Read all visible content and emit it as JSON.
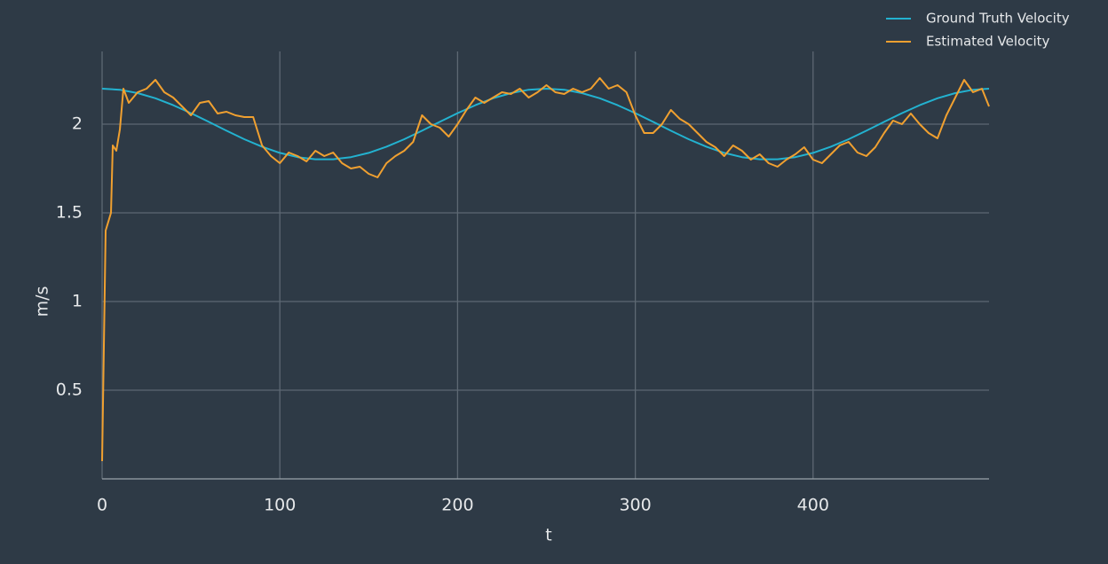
{
  "chart_data": {
    "type": "line",
    "xlabel": "t",
    "ylabel": "m/s",
    "xlim": [
      0,
      499
    ],
    "ylim": [
      0,
      2.41
    ],
    "xticks": [
      0,
      100,
      200,
      300,
      400
    ],
    "yticks": [
      0.5,
      1,
      1.5,
      2
    ],
    "grid": true,
    "legend": "top-right",
    "series": [
      {
        "name": "Ground Truth Velocity",
        "color": "#23b2d0",
        "x": [
          0,
          10,
          20,
          30,
          40,
          50,
          60,
          70,
          80,
          90,
          100,
          110,
          120,
          130,
          140,
          150,
          160,
          170,
          180,
          190,
          200,
          210,
          220,
          230,
          240,
          250,
          260,
          270,
          280,
          290,
          300,
          310,
          320,
          330,
          340,
          350,
          360,
          370,
          380,
          390,
          400,
          410,
          420,
          430,
          440,
          450,
          460,
          470,
          480,
          490,
          499
        ],
        "values": [
          2.2,
          2.194,
          2.175,
          2.146,
          2.107,
          2.062,
          2.013,
          1.963,
          1.915,
          1.873,
          1.838,
          1.814,
          1.802,
          1.802,
          1.814,
          1.838,
          1.873,
          1.915,
          1.963,
          2.013,
          2.062,
          2.107,
          2.146,
          2.175,
          2.194,
          2.2,
          2.194,
          2.175,
          2.146,
          2.107,
          2.062,
          2.013,
          1.963,
          1.915,
          1.873,
          1.838,
          1.814,
          1.802,
          1.802,
          1.814,
          1.838,
          1.873,
          1.915,
          1.963,
          2.013,
          2.062,
          2.107,
          2.146,
          2.175,
          2.194,
          2.2
        ]
      },
      {
        "name": "Estimated Velocity",
        "color": "#f0a030",
        "x": [
          0,
          2,
          5,
          6,
          8,
          10,
          12,
          15,
          20,
          25,
          30,
          35,
          40,
          45,
          50,
          55,
          60,
          65,
          70,
          75,
          80,
          85,
          90,
          95,
          100,
          105,
          110,
          115,
          120,
          125,
          130,
          135,
          140,
          145,
          150,
          155,
          160,
          165,
          170,
          175,
          180,
          185,
          190,
          195,
          200,
          205,
          210,
          215,
          220,
          225,
          230,
          235,
          240,
          245,
          250,
          255,
          260,
          265,
          270,
          275,
          280,
          285,
          290,
          295,
          300,
          305,
          310,
          315,
          320,
          325,
          330,
          335,
          340,
          345,
          350,
          355,
          360,
          365,
          370,
          375,
          380,
          385,
          390,
          395,
          400,
          405,
          410,
          415,
          420,
          425,
          430,
          435,
          440,
          445,
          450,
          455,
          460,
          465,
          470,
          475,
          480,
          485,
          490,
          495,
          499
        ],
        "values": [
          0.1,
          1.4,
          1.5,
          1.88,
          1.85,
          1.97,
          2.2,
          2.12,
          2.18,
          2.2,
          2.25,
          2.18,
          2.15,
          2.1,
          2.05,
          2.12,
          2.13,
          2.06,
          2.07,
          2.05,
          2.04,
          2.04,
          1.88,
          1.82,
          1.78,
          1.84,
          1.82,
          1.79,
          1.85,
          1.82,
          1.84,
          1.78,
          1.75,
          1.76,
          1.72,
          1.7,
          1.78,
          1.82,
          1.85,
          1.9,
          2.05,
          2.0,
          1.98,
          1.93,
          2.0,
          2.08,
          2.15,
          2.12,
          2.15,
          2.18,
          2.17,
          2.2,
          2.15,
          2.18,
          2.22,
          2.18,
          2.17,
          2.2,
          2.18,
          2.2,
          2.26,
          2.2,
          2.22,
          2.18,
          2.05,
          1.95,
          1.95,
          2.0,
          2.08,
          2.03,
          2.0,
          1.95,
          1.9,
          1.87,
          1.82,
          1.88,
          1.85,
          1.8,
          1.83,
          1.78,
          1.76,
          1.8,
          1.83,
          1.87,
          1.8,
          1.78,
          1.83,
          1.88,
          1.9,
          1.84,
          1.82,
          1.87,
          1.95,
          2.02,
          2.0,
          2.06,
          2.0,
          1.95,
          1.92,
          2.05,
          2.15,
          2.25,
          2.18,
          2.2,
          2.1
        ]
      }
    ]
  }
}
